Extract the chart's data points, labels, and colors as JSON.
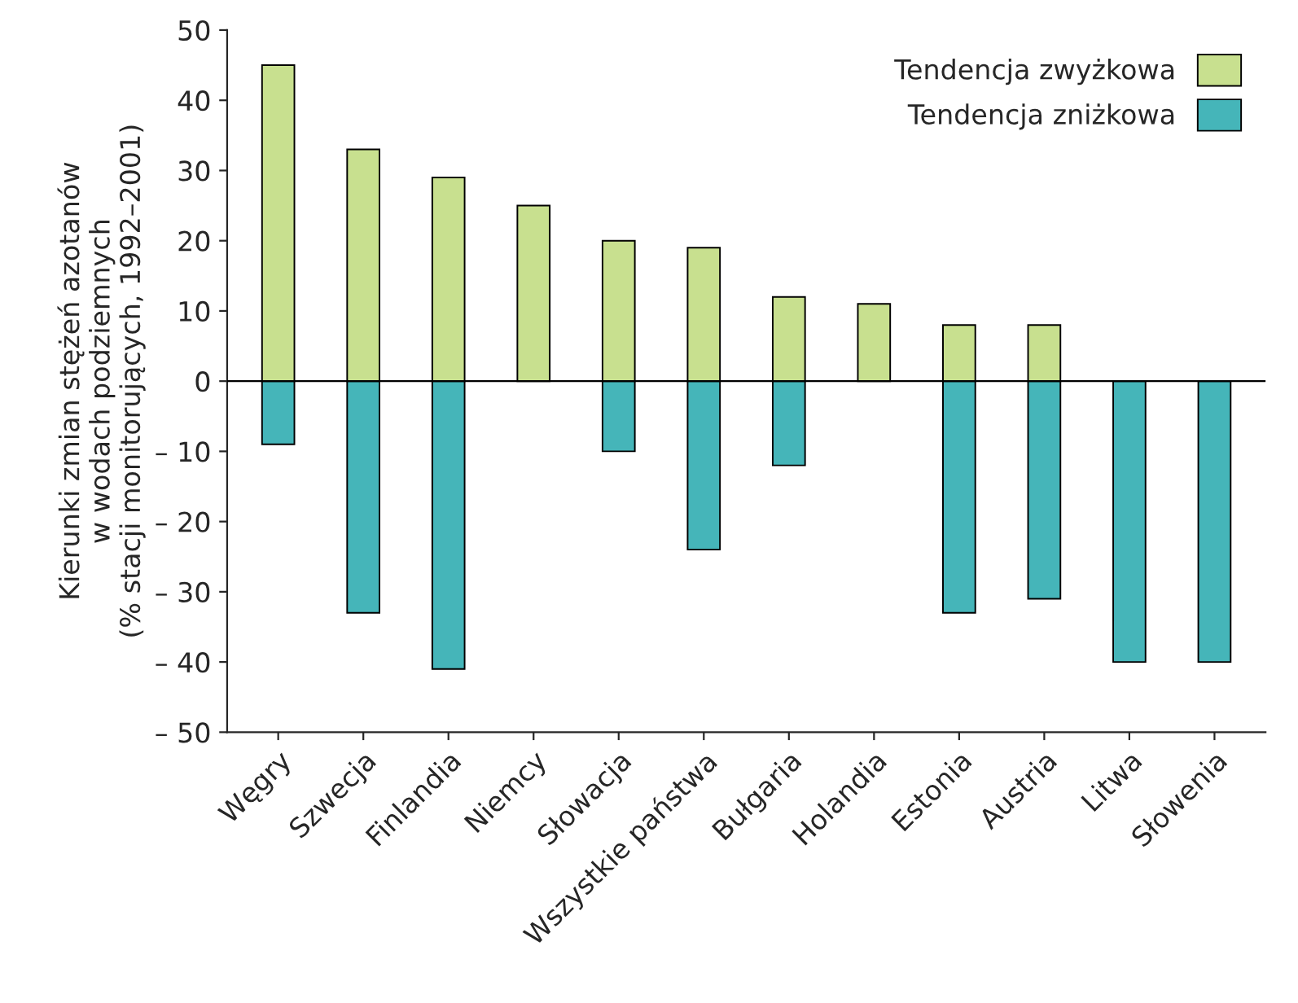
{
  "chart_data": {
    "type": "bar",
    "ylabel": "Kierunki zmian stężeń azotanów\nw wodach podziemnych\n(% stacji monitorujących, 1992–2001)",
    "categories": [
      "Węgry",
      "Szwecja",
      "Finlandia",
      "Niemcy",
      "Słowacja",
      "Wszystkie państwa",
      "Bułgaria",
      "Holandia",
      "Estonia",
      "Austria",
      "Litwa",
      "Słowenia"
    ],
    "series": [
      {
        "name": "Tendencja zwyżkowa",
        "color": "#c8e08f",
        "values": [
          45,
          33,
          29,
          25,
          20,
          19,
          12,
          11,
          8,
          8,
          null,
          null
        ]
      },
      {
        "name": "Tendencja zniżkowa",
        "color": "#45b5b9",
        "values": [
          -9,
          -33,
          -41,
          null,
          -10,
          -24,
          -12,
          null,
          -33,
          -31,
          -40,
          -40
        ]
      }
    ],
    "ylim": [
      -50,
      50
    ],
    "yticks": [
      {
        "value": -50,
        "label": "– 50"
      },
      {
        "value": -40,
        "label": "– 40"
      },
      {
        "value": -30,
        "label": "– 30"
      },
      {
        "value": -20,
        "label": "– 20"
      },
      {
        "value": -10,
        "label": "– 10"
      },
      0,
      10,
      20,
      30,
      40,
      50
    ],
    "ref_lines": [
      {
        "axis": "y",
        "value": 0
      }
    ],
    "stacked": true,
    "legend": "top right",
    "grid": false
  }
}
